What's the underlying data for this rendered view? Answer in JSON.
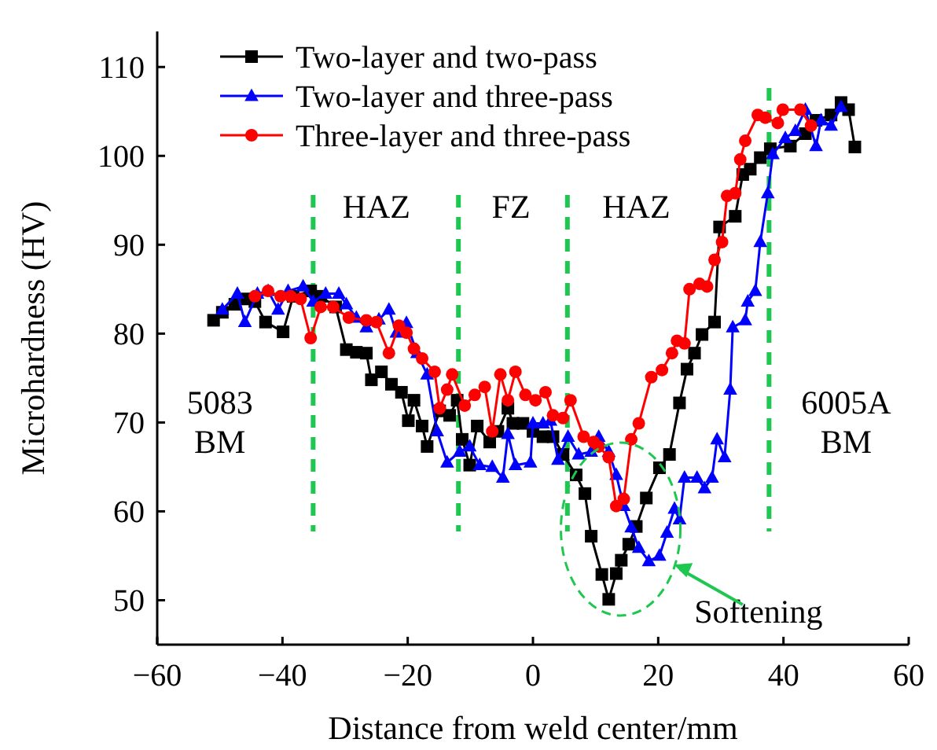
{
  "chart_data": {
    "type": "line",
    "xlabel": "Distance from weld center/mm",
    "ylabel": "Microhardness (HV)",
    "xlim": [
      -60,
      60
    ],
    "xticks": [
      -60,
      -40,
      -20,
      0,
      20,
      40,
      60
    ],
    "ylim": [
      45,
      114
    ],
    "yticks": [
      50,
      60,
      70,
      80,
      90,
      100,
      110
    ],
    "legend": "top left",
    "grid": false,
    "line_style": "solid",
    "series": [
      {
        "name": "Two-layer and two-pass",
        "color": "#000000",
        "marker": "square",
        "x": [
          -51.0,
          -49.6,
          -47.6,
          -45.6,
          -44.4,
          -42.7,
          -39.9,
          -38.3,
          -35.5,
          -33.9,
          -31.5,
          -29.8,
          -28.2,
          -26.6,
          -25.8,
          -24.2,
          -22.6,
          -21.0,
          -19.9,
          -19.0,
          -17.7,
          -16.9,
          -14.9,
          -13.3,
          -12.1,
          -11.3,
          -10.1,
          -8.9,
          -6.9,
          -5.6,
          -4.0,
          -3.2,
          -1.6,
          0,
          1.6,
          3.2,
          4.8,
          6.9,
          8.3,
          9.3,
          11.0,
          12.1,
          13.3,
          14.1,
          15.3,
          16.5,
          18.1,
          20.2,
          21.8,
          23.4,
          24.6,
          25.8,
          27.0,
          29.0,
          29.8,
          32.3,
          33.5,
          34.7,
          36.3,
          37.9,
          41.1,
          43.5,
          45.2,
          47.6,
          49.2,
          50.4,
          51.4
        ],
        "values": [
          81.5,
          82.4,
          83.3,
          83.9,
          83.6,
          81.3,
          80.2,
          84.2,
          84.8,
          84.2,
          83.0,
          78.2,
          77.9,
          77.8,
          74.8,
          75.7,
          74.3,
          73.4,
          70.2,
          72.5,
          69.6,
          67.3,
          71.3,
          70.8,
          72.5,
          68.1,
          65.2,
          69.6,
          67.8,
          69.0,
          71.6,
          69.9,
          69.9,
          69.0,
          68.4,
          68.4,
          66.4,
          64.1,
          62.0,
          57.2,
          52.9,
          50.1,
          53.0,
          54.5,
          56.3,
          58.3,
          61.5,
          64.9,
          66.4,
          72.2,
          76.0,
          77.8,
          79.9,
          81.3,
          92.0,
          93.2,
          97.9,
          98.5,
          99.8,
          100.8,
          101.1,
          102.5,
          104.0,
          104.6,
          106.0,
          105.2,
          101.0
        ]
      },
      {
        "name": "Two-layer and three-pass",
        "color": "#0000ff",
        "marker": "triangle",
        "x": [
          -49.6,
          -47.2,
          -46.0,
          -44.0,
          -42.3,
          -40.7,
          -39.1,
          -36.7,
          -35.1,
          -33.1,
          -31.0,
          -29.8,
          -28.2,
          -26.6,
          -24.6,
          -23.0,
          -21.8,
          -20.2,
          -18.5,
          -16.9,
          -15.3,
          -13.7,
          -11.7,
          -10.1,
          -8.5,
          -6.5,
          -4.8,
          -4.0,
          -2.8,
          -0.4,
          0,
          1.6,
          2.8,
          4.0,
          5.6,
          7.3,
          9.3,
          10.5,
          12.1,
          13.3,
          14.5,
          15.7,
          16.9,
          18.5,
          20.2,
          21.4,
          22.6,
          23.4,
          24.2,
          26.2,
          27.4,
          28.6,
          29.4,
          30.6,
          31.5,
          31.9,
          33.9,
          34.3,
          35.5,
          36.3,
          37.5,
          38.3,
          40.3,
          41.9,
          43.5,
          45.2,
          46.0,
          47.6,
          49.2
        ],
        "values": [
          82.7,
          84.5,
          81.3,
          84.5,
          84.8,
          82.7,
          84.8,
          85.3,
          83.6,
          84.5,
          84.5,
          83.3,
          81.8,
          80.7,
          81.6,
          82.7,
          80.1,
          81.2,
          77.8,
          75.4,
          69.0,
          65.5,
          66.7,
          67.3,
          65.2,
          65.0,
          63.8,
          68.7,
          65.2,
          65.5,
          69.9,
          69.9,
          70.2,
          65.8,
          68.4,
          66.4,
          66.7,
          68.4,
          66.7,
          64.1,
          60.6,
          58.2,
          55.9,
          54.4,
          55.0,
          57.6,
          60.3,
          59.1,
          63.8,
          63.8,
          62.6,
          63.8,
          68.1,
          66.1,
          73.7,
          80.7,
          81.5,
          83.6,
          84.8,
          90.3,
          95.8,
          100.2,
          102.0,
          102.8,
          105.2,
          101.1,
          104.0,
          103.4,
          105.5
        ]
      },
      {
        "name": "Three-layer and three-pass",
        "color": "#ff0000",
        "marker": "circle",
        "x": [
          -44.4,
          -42.3,
          -40.3,
          -38.7,
          -37.1,
          -35.5,
          -33.9,
          -31.9,
          -29.4,
          -26.6,
          -25.0,
          -23.0,
          -21.4,
          -20.2,
          -19.0,
          -17.7,
          -15.7,
          -14.9,
          -13.7,
          -12.9,
          -10.9,
          -9.3,
          -7.7,
          -6.5,
          -5.2,
          -4.0,
          -2.8,
          -1.2,
          0.4,
          2.0,
          3.2,
          4.8,
          6.0,
          8.1,
          9.7,
          10.5,
          12.1,
          13.3,
          14.5,
          15.7,
          16.9,
          18.9,
          20.6,
          22.2,
          23.0,
          24.2,
          25.0,
          26.6,
          27.8,
          29.0,
          30.2,
          31.0,
          32.3,
          33.1,
          33.9,
          35.9,
          37.1,
          39.1,
          39.9,
          42.7,
          44.4
        ],
        "values": [
          84.2,
          84.8,
          84.2,
          84.2,
          83.9,
          79.5,
          83.0,
          83.0,
          81.8,
          81.5,
          81.3,
          77.8,
          80.9,
          80.1,
          78.3,
          77.2,
          75.7,
          71.6,
          73.7,
          75.4,
          71.9,
          73.1,
          74.0,
          69.0,
          75.4,
          72.5,
          75.7,
          73.1,
          72.5,
          73.4,
          70.8,
          70.5,
          72.5,
          68.4,
          67.8,
          67.3,
          66.1,
          60.6,
          61.4,
          68.1,
          69.9,
          75.1,
          75.9,
          77.8,
          79.2,
          78.9,
          85.0,
          85.6,
          85.3,
          88.3,
          90.3,
          95.5,
          95.8,
          99.6,
          101.7,
          104.6,
          104.3,
          103.7,
          105.2,
          105.2,
          103.4
        ]
      }
    ],
    "ref_lines": [
      {
        "axis": "x",
        "value": -35.1,
        "color": "#1ec850",
        "line_style": "dashed"
      },
      {
        "axis": "x",
        "value": -11.9,
        "color": "#1ec850",
        "line_style": "dashed"
      },
      {
        "axis": "x",
        "value": 5.5,
        "color": "#1ec850",
        "line_style": "dashed"
      },
      {
        "axis": "x",
        "value": 37.7,
        "color": "#1ec850",
        "line_style": "dashed"
      }
    ],
    "annotations": [
      "HAZ",
      "FZ",
      "HAZ",
      "5083\nBM",
      "6005A\nBM",
      "Softening"
    ]
  }
}
